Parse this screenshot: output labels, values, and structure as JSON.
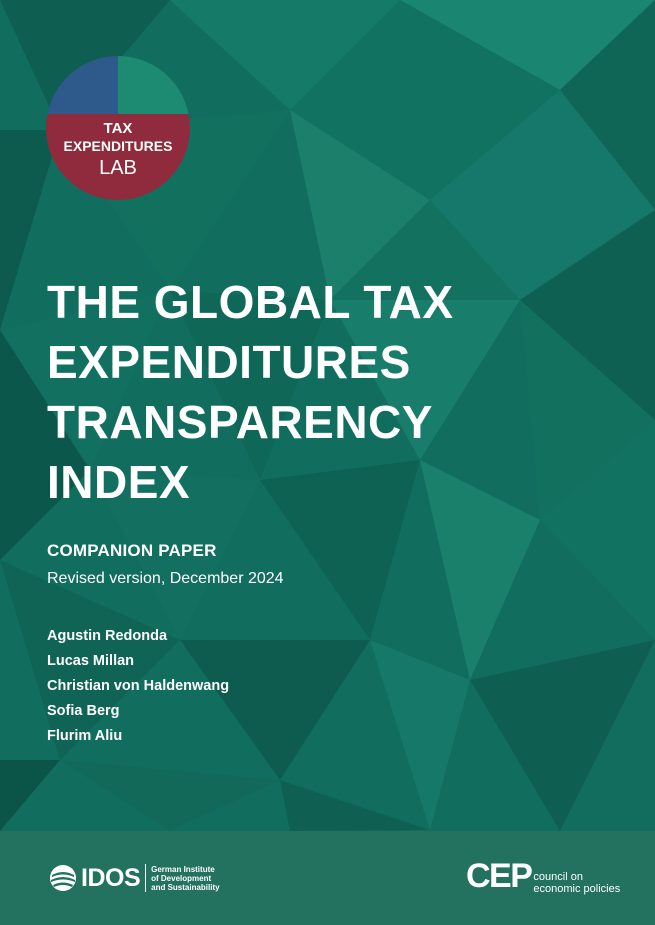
{
  "logo": {
    "line1": "TAX",
    "line2": "EXPENDITURES",
    "line3": "LAB",
    "colors": {
      "blue": "#2d5a8a",
      "green": "#1d8a72",
      "red": "#8f2b3d"
    }
  },
  "title_lines": [
    "THE GLOBAL TAX",
    "EXPENDITURES",
    "TRANSPARENCY",
    "INDEX"
  ],
  "subtitle": "COMPANION PAPER",
  "revised": "Revised version, December 2024",
  "authors": [
    "Agustin Redonda",
    "Lucas Millan",
    "Christian von Haldenwang",
    "Sofia Berg",
    "Flurim Aliu"
  ],
  "footer": {
    "idos": {
      "name": "IDOS",
      "desc": [
        "German Institute",
        "of Development",
        "and Sustainability"
      ]
    },
    "cep": {
      "name": "CEP",
      "desc": [
        "council on",
        "economic policies"
      ]
    }
  },
  "colors": {
    "background": "#116e5e",
    "footer": "#23715f",
    "text": "#ffffff"
  }
}
